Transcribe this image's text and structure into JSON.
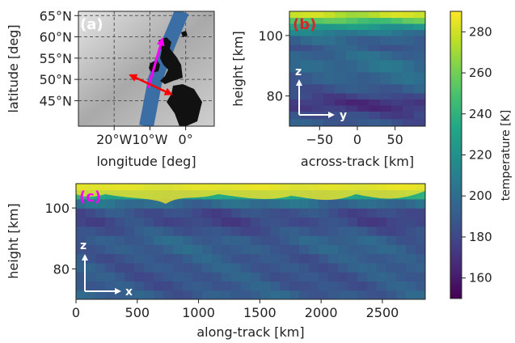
{
  "chart_data": [
    {
      "type": "map",
      "panel_label": "(a)",
      "xlabel": "longitude [deg]",
      "ylabel": "latitude [deg]",
      "xlim": [
        -30,
        8
      ],
      "ylim": [
        39,
        66
      ],
      "xticks": [
        {
          "value": -20,
          "label": "20°W"
        },
        {
          "value": -10,
          "label": "10°W"
        },
        {
          "value": 0,
          "label": "0°"
        }
      ],
      "yticks": [
        {
          "value": 45,
          "label": "45°N"
        },
        {
          "value": 50,
          "label": "50°N"
        },
        {
          "value": 55,
          "label": "55°N"
        },
        {
          "value": 60,
          "label": "60°N"
        },
        {
          "value": 65,
          "label": "65°N"
        }
      ],
      "grid": true,
      "swath": {
        "color": "#3a6ea5",
        "path": [
          [
            -11,
            39
          ],
          [
            -8.5,
            50
          ],
          [
            -5,
            58
          ],
          [
            -1,
            66
          ]
        ]
      },
      "arrows": [
        {
          "name": "flight-direction",
          "color": "#ff00ff",
          "from": [
            -10.5,
            48
          ],
          "to": [
            -6.5,
            59.5
          ]
        },
        {
          "name": "across-track",
          "color": "#ff0000",
          "from": [
            -15.5,
            51
          ],
          "to": [
            -4,
            46.5
          ]
        }
      ]
    },
    {
      "type": "heatmap",
      "panel_label": "(b)",
      "xlabel": "across-track [km]",
      "ylabel": "height [km]",
      "xlim": [
        -90,
        90
      ],
      "ylim": [
        70,
        108
      ],
      "xticks": [
        -50,
        0,
        50
      ],
      "yticks": [
        80,
        100
      ],
      "axis_arrows": {
        "vertical": "z",
        "horizontal": "y"
      },
      "height_levels_km": [
        70,
        72.5,
        75,
        77,
        79,
        81,
        84,
        88,
        92,
        95,
        97,
        100,
        102,
        104,
        106,
        108
      ],
      "temperature_K": [
        188,
        186,
        178,
        168,
        176,
        186,
        192,
        196,
        200,
        190,
        186,
        200,
        214,
        238,
        268,
        288
      ]
    },
    {
      "type": "heatmap",
      "panel_label": "(c)",
      "xlabel": "along-track [km]",
      "ylabel": "height [km]",
      "xlim": [
        0,
        2850
      ],
      "ylim": [
        70,
        108
      ],
      "xticks": [
        0,
        500,
        1000,
        1500,
        2000,
        2500
      ],
      "yticks": [
        80,
        100
      ],
      "axis_arrows": {
        "vertical": "z",
        "horizontal": "x"
      },
      "height_levels_km": [
        70,
        73,
        76,
        79,
        82,
        85,
        88,
        91,
        94,
        97,
        100,
        103,
        106,
        108
      ],
      "temperature_K": [
        192,
        190,
        186,
        190,
        188,
        190,
        194,
        190,
        182,
        178,
        188,
        210,
        250,
        282
      ]
    }
  ],
  "colorbar": {
    "label": "temperature [K]",
    "vmin": 150,
    "vmax": 290,
    "ticks": [
      160,
      180,
      200,
      220,
      240,
      260,
      280
    ],
    "colormap": "viridis"
  },
  "colors": {
    "panel_a_label": "#ffffff",
    "panel_b_label": "#d62728",
    "panel_c_label": "#ff00ff",
    "axis_arrows": "#ffffff",
    "map_land": "#111111",
    "map_background": "#9a9a9a"
  }
}
